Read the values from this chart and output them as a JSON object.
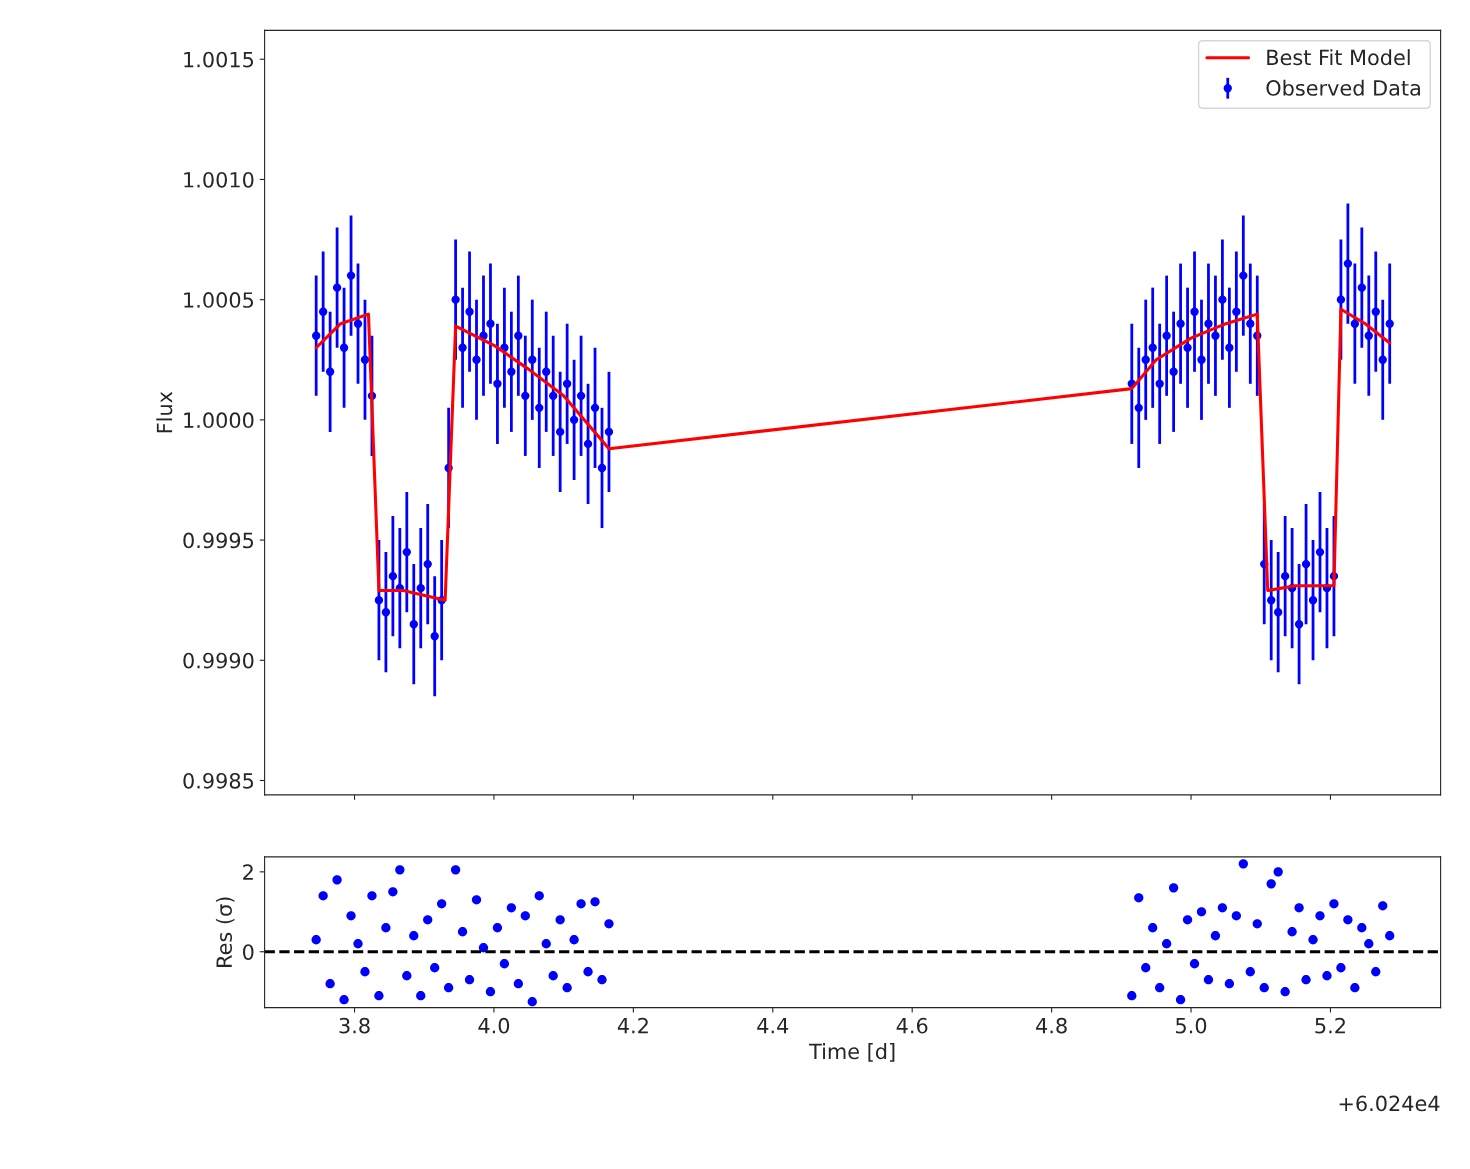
{
  "chart_data": [
    {
      "type": "scatter",
      "ylabel": "Flux",
      "xlim": [
        3.671,
        5.358
      ],
      "ylim": [
        0.99844,
        1.00162
      ],
      "xticks": [
        3.8,
        4.0,
        4.2,
        4.4,
        4.6,
        4.8,
        5.0,
        5.2
      ],
      "yticks": [
        {
          "value": 0.9985,
          "label": "0.9985"
        },
        {
          "value": 0.999,
          "label": "0.9990"
        },
        {
          "value": 0.9995,
          "label": "0.9995"
        },
        {
          "value": 1.0,
          "label": "1.0000"
        },
        {
          "value": 1.0005,
          "label": "1.0005"
        },
        {
          "value": 1.001,
          "label": "1.0010"
        },
        {
          "value": 1.0015,
          "label": "1.0015"
        }
      ],
      "tick_labels": "y",
      "legend": "top right",
      "marker": "circle",
      "series": [
        {
          "name": "Best Fit Model",
          "type": "line",
          "color": "#ff0000",
          "line_style": "solid",
          "marker": "none",
          "x": [
            3.745,
            3.78,
            3.82,
            3.835,
            3.87,
            3.93,
            3.945,
            4.0,
            4.05,
            4.1,
            4.165,
            4.915,
            4.95,
            5.0,
            5.05,
            5.095,
            5.11,
            5.15,
            5.205,
            5.215,
            5.25,
            5.285
          ],
          "values": [
            1.0003,
            1.0004,
            1.00044,
            0.99929,
            0.99929,
            0.99925,
            1.00039,
            1.00031,
            1.00021,
            1.0001,
            0.99988,
            1.00013,
            1.00025,
            1.00034,
            1.0004,
            1.00044,
            0.99929,
            0.99931,
            0.99931,
            1.00046,
            1.0004,
            1.00032
          ]
        },
        {
          "name": "Observed Data",
          "color": "#0000ff",
          "x": [
            3.745,
            3.755,
            3.765,
            3.775,
            3.785,
            3.795,
            3.805,
            3.815,
            3.825,
            3.835,
            3.845,
            3.855,
            3.865,
            3.875,
            3.885,
            3.895,
            3.905,
            3.915,
            3.925,
            3.935,
            3.945,
            3.955,
            3.965,
            3.975,
            3.985,
            3.995,
            4.005,
            4.015,
            4.025,
            4.035,
            4.045,
            4.055,
            4.065,
            4.075,
            4.085,
            4.095,
            4.105,
            4.115,
            4.125,
            4.135,
            4.145,
            4.155,
            4.165,
            4.915,
            4.925,
            4.935,
            4.945,
            4.955,
            4.965,
            4.975,
            4.985,
            4.995,
            5.005,
            5.015,
            5.025,
            5.035,
            5.045,
            5.055,
            5.065,
            5.075,
            5.085,
            5.095,
            5.105,
            5.115,
            5.125,
            5.135,
            5.145,
            5.155,
            5.165,
            5.175,
            5.185,
            5.195,
            5.205,
            5.215,
            5.225,
            5.235,
            5.245,
            5.255,
            5.265,
            5.275,
            5.285
          ],
          "values": [
            1.00035,
            1.00045,
            1.0002,
            1.00055,
            1.0003,
            1.0006,
            1.0004,
            1.00025,
            1.0001,
            0.99925,
            0.9992,
            0.99935,
            0.9993,
            0.99945,
            0.99915,
            0.9993,
            0.9994,
            0.9991,
            0.99925,
            0.9998,
            1.0005,
            1.0003,
            1.00045,
            1.00025,
            1.00035,
            1.0004,
            1.00015,
            1.0003,
            1.0002,
            1.00035,
            1.0001,
            1.00025,
            1.00005,
            1.0002,
            1.0001,
            0.99995,
            1.00015,
            1.0,
            1.0001,
            0.9999,
            1.00005,
            0.9998,
            0.99995,
            1.00015,
            1.00005,
            1.00025,
            1.0003,
            1.00015,
            1.00035,
            1.0002,
            1.0004,
            1.0003,
            1.00045,
            1.00025,
            1.0004,
            1.00035,
            1.0005,
            1.0003,
            1.00045,
            1.0006,
            1.0004,
            1.00035,
            0.9994,
            0.99925,
            0.9992,
            0.99935,
            0.9993,
            0.99915,
            0.9994,
            0.99925,
            0.99945,
            0.9993,
            0.99935,
            1.0005,
            1.00065,
            1.0004,
            1.00055,
            1.00035,
            1.00045,
            1.00025,
            1.0004
          ],
          "errors": [
            0.00025,
            0.00025,
            0.00025,
            0.00025,
            0.00025,
            0.00025,
            0.00025,
            0.00025,
            0.00025,
            0.00025,
            0.00025,
            0.00025,
            0.00025,
            0.00025,
            0.00025,
            0.00025,
            0.00025,
            0.00025,
            0.00025,
            0.00025,
            0.00025,
            0.00025,
            0.00025,
            0.00025,
            0.00025,
            0.00025,
            0.00025,
            0.00025,
            0.00025,
            0.00025,
            0.00025,
            0.00025,
            0.00025,
            0.00025,
            0.00025,
            0.00025,
            0.00025,
            0.00025,
            0.00025,
            0.00025,
            0.00025,
            0.00025,
            0.00025,
            0.00025,
            0.00025,
            0.00025,
            0.00025,
            0.00025,
            0.00025,
            0.00025,
            0.00025,
            0.00025,
            0.00025,
            0.00025,
            0.00025,
            0.00025,
            0.00025,
            0.00025,
            0.00025,
            0.00025,
            0.00025,
            0.00025,
            0.00025,
            0.00025,
            0.00025,
            0.00025,
            0.00025,
            0.00025,
            0.00025,
            0.00025,
            0.00025,
            0.00025,
            0.00025,
            0.00025,
            0.00025,
            0.00025,
            0.00025,
            0.00025,
            0.00025,
            0.00025,
            0.00025
          ]
        }
      ]
    },
    {
      "type": "scatter",
      "xlabel": "Time [d]",
      "ylabel": "Res (σ)",
      "xlim": [
        3.671,
        5.358
      ],
      "ylim": [
        -1.4,
        2.375
      ],
      "xticks": [
        3.8,
        {
          "value": 4.0,
          "label": "4.0"
        },
        4.2,
        4.4,
        4.6,
        4.8,
        {
          "value": 5.0,
          "label": "5.0"
        },
        5.2
      ],
      "yticks": [
        0,
        2
      ],
      "marker": "circle",
      "annotations": [
        "+6.024e4"
      ],
      "ref_lines": [
        {
          "axis": "y",
          "value": 0,
          "color": "#000000",
          "line_style": "dashed"
        }
      ],
      "series": [
        {
          "color": "#0000ff",
          "x": [
            3.745,
            3.755,
            3.765,
            3.775,
            3.785,
            3.795,
            3.805,
            3.815,
            3.825,
            3.835,
            3.845,
            3.855,
            3.865,
            3.875,
            3.885,
            3.895,
            3.905,
            3.915,
            3.925,
            3.935,
            3.945,
            3.955,
            3.965,
            3.975,
            3.985,
            3.995,
            4.005,
            4.015,
            4.025,
            4.035,
            4.045,
            4.055,
            4.065,
            4.075,
            4.085,
            4.095,
            4.105,
            4.115,
            4.125,
            4.135,
            4.145,
            4.155,
            4.165,
            4.915,
            4.925,
            4.935,
            4.945,
            4.955,
            4.965,
            4.975,
            4.985,
            4.995,
            5.005,
            5.015,
            5.025,
            5.035,
            5.045,
            5.055,
            5.065,
            5.075,
            5.085,
            5.095,
            5.105,
            5.115,
            5.125,
            5.135,
            5.145,
            5.155,
            5.165,
            5.175,
            5.185,
            5.195,
            5.205,
            5.215,
            5.225,
            5.235,
            5.245,
            5.255,
            5.265,
            5.275,
            5.285
          ],
          "values": [
            0.3,
            1.4,
            -0.8,
            1.8,
            -1.2,
            0.9,
            0.2,
            -0.5,
            1.4,
            -1.1,
            0.6,
            1.5,
            2.05,
            -0.6,
            0.4,
            -1.1,
            0.8,
            -0.4,
            1.2,
            -0.9,
            2.05,
            0.5,
            -0.7,
            1.3,
            0.1,
            -1.0,
            0.6,
            -0.3,
            1.1,
            -0.8,
            0.9,
            -1.25,
            1.4,
            0.2,
            -0.6,
            0.8,
            -0.9,
            0.3,
            1.2,
            -0.5,
            1.25,
            -0.7,
            0.7,
            -1.1,
            1.35,
            -0.4,
            0.6,
            -0.9,
            0.2,
            1.6,
            -1.2,
            0.8,
            -0.3,
            1.0,
            -0.7,
            0.4,
            1.1,
            -0.8,
            0.9,
            2.2,
            -0.5,
            0.7,
            -0.9,
            1.7,
            2.0,
            -1.0,
            0.5,
            1.1,
            -0.7,
            0.3,
            0.9,
            -0.6,
            1.2,
            -0.4,
            0.8,
            -0.9,
            0.6,
            0.2,
            -0.5,
            1.15,
            0.4
          ]
        }
      ]
    }
  ]
}
